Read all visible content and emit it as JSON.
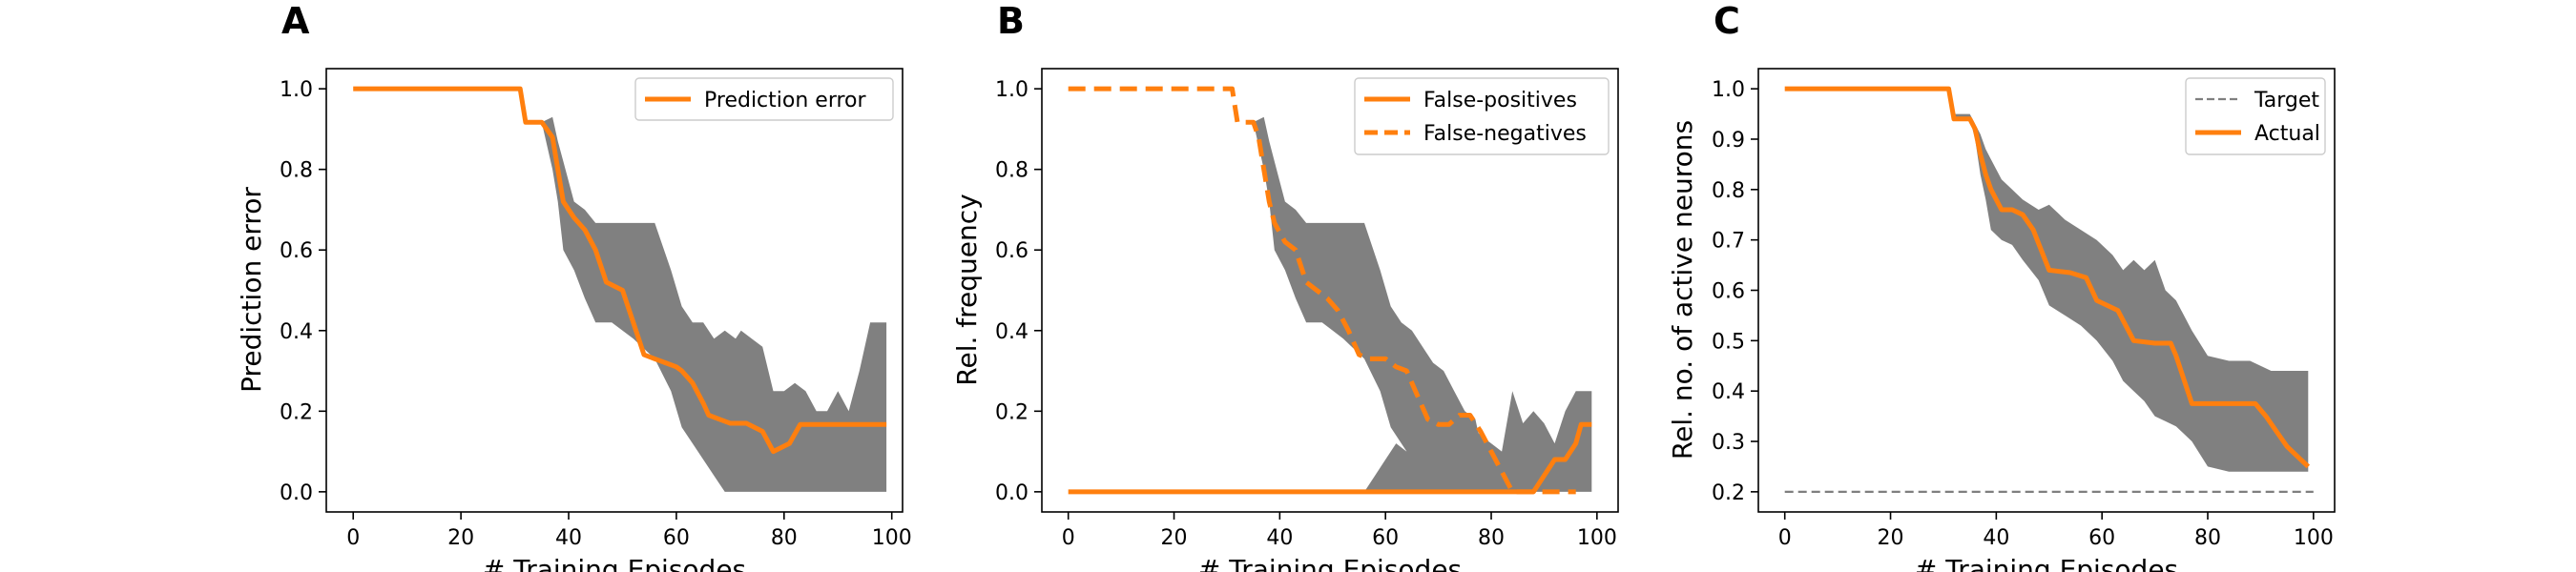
{
  "figure": {
    "colors": {
      "actual": "#ff7f0e",
      "band": "#808080",
      "target": "#7f7f7f",
      "axis": "#000000"
    }
  },
  "chart_data": [
    {
      "type": "line",
      "panel_letter": "A",
      "xlabel": "# Training Episodes",
      "ylabel": "Prediction error",
      "xlim": [
        -5,
        102
      ],
      "ylim": [
        -0.05,
        1.05
      ],
      "x_ticks": [
        "0",
        "20",
        "40",
        "60",
        "80",
        "100"
      ],
      "y_ticks": [
        "0.0",
        "0.2",
        "0.4",
        "0.6",
        "0.8",
        "1.0"
      ],
      "legend_position": "top-right",
      "series": [
        {
          "name": "Prediction error",
          "style": "solid",
          "x": [
            0,
            31,
            32,
            35,
            37,
            38,
            39,
            41,
            43,
            45,
            47,
            50,
            52,
            54,
            56,
            58,
            60,
            61,
            63,
            65,
            66,
            68,
            70,
            73,
            76,
            78,
            81,
            83,
            86,
            90,
            94,
            99
          ],
          "y": [
            1.0,
            1.0,
            0.917,
            0.917,
            0.88,
            0.8,
            0.72,
            0.68,
            0.65,
            0.6,
            0.52,
            0.5,
            0.42,
            0.34,
            0.33,
            0.32,
            0.31,
            0.3,
            0.27,
            0.22,
            0.19,
            0.18,
            0.17,
            0.17,
            0.15,
            0.1,
            0.12,
            0.167,
            0.167,
            0.167,
            0.167,
            0.167
          ],
          "band_x": [
            0,
            31,
            32,
            35,
            37,
            38,
            39,
            41,
            43,
            45,
            48,
            52,
            56,
            59,
            61,
            63,
            65,
            67,
            69,
            71,
            72,
            74,
            76,
            78,
            80,
            82,
            84,
            86,
            88,
            90,
            92,
            94,
            96,
            99
          ],
          "band_upper": [
            1.0,
            1.0,
            0.917,
            0.917,
            0.93,
            0.87,
            0.82,
            0.72,
            0.7,
            0.667,
            0.667,
            0.667,
            0.667,
            0.55,
            0.46,
            0.42,
            0.42,
            0.38,
            0.4,
            0.38,
            0.4,
            0.38,
            0.36,
            0.25,
            0.25,
            0.27,
            0.25,
            0.2,
            0.2,
            0.25,
            0.2,
            0.3,
            0.42,
            0.42
          ],
          "band_lower": [
            1.0,
            1.0,
            0.917,
            0.917,
            0.8,
            0.72,
            0.6,
            0.55,
            0.48,
            0.42,
            0.42,
            0.38,
            0.33,
            0.25,
            0.16,
            0.12,
            0.08,
            0.04,
            0.0,
            0.0,
            0.0,
            0.0,
            0.0,
            0.0,
            0.0,
            0.0,
            0.0,
            0.0,
            0.0,
            0.0,
            0.0,
            0.0,
            0.0,
            0.0
          ]
        }
      ]
    },
    {
      "type": "line",
      "panel_letter": "B",
      "xlabel": "# Training Episodes",
      "ylabel": "Rel. frequency",
      "xlim": [
        -5,
        104
      ],
      "ylim": [
        -0.05,
        1.05
      ],
      "x_ticks": [
        "0",
        "20",
        "40",
        "60",
        "80",
        "100"
      ],
      "y_ticks": [
        "0.0",
        "0.2",
        "0.4",
        "0.6",
        "0.8",
        "1.0"
      ],
      "legend_position": "top-right",
      "series": [
        {
          "name": "False-positives",
          "style": "solid",
          "x": [
            0,
            88,
            90,
            92,
            94,
            96,
            97,
            99
          ],
          "y": [
            0.0,
            0.0,
            0.04,
            0.08,
            0.08,
            0.12,
            0.167,
            0.167
          ],
          "band_x": [
            0,
            56,
            58,
            60,
            62,
            64,
            66,
            68,
            70,
            72,
            74,
            76,
            78,
            80,
            82,
            84,
            86,
            88,
            90,
            92,
            94,
            96,
            99
          ],
          "band_upper": [
            0.0,
            0.0,
            0.04,
            0.08,
            0.12,
            0.1,
            0.18,
            0.16,
            0.19,
            0.2,
            0.12,
            0.17,
            0.14,
            0.12,
            0.1,
            0.25,
            0.17,
            0.2,
            0.17,
            0.12,
            0.2,
            0.25,
            0.25
          ],
          "band_lower": [
            0.0,
            0.0,
            0.0,
            0.0,
            0.0,
            0.0,
            0.0,
            0.0,
            0.0,
            0.0,
            0.0,
            0.0,
            0.0,
            0.0,
            0.0,
            0.0,
            0.0,
            0.0,
            0.0,
            0.0,
            0.0,
            0.0,
            0.0
          ]
        },
        {
          "name": "False-negatives",
          "style": "dashed",
          "x": [
            0,
            31,
            32,
            35,
            36,
            37,
            38,
            39,
            41,
            43,
            45,
            47,
            49,
            51,
            53,
            55,
            57,
            60,
            62,
            64,
            66,
            68,
            70,
            72,
            74,
            76,
            78,
            80,
            82,
            84,
            89,
            91,
            95,
            96
          ],
          "y": [
            1.0,
            1.0,
            0.917,
            0.917,
            0.88,
            0.8,
            0.72,
            0.667,
            0.62,
            0.6,
            0.52,
            0.5,
            0.48,
            0.45,
            0.4,
            0.34,
            0.33,
            0.33,
            0.31,
            0.3,
            0.24,
            0.18,
            0.167,
            0.167,
            0.19,
            0.19,
            0.15,
            0.1,
            0.05,
            0.0,
            0.0,
            0.0,
            0.0,
            0.0
          ],
          "band_x": [
            0,
            31,
            32,
            35,
            37,
            38,
            39,
            41,
            43,
            45,
            48,
            52,
            56,
            59,
            61,
            63,
            65,
            67,
            69,
            71,
            73,
            75,
            77,
            80
          ],
          "band_upper": [
            1.0,
            1.0,
            0.917,
            0.917,
            0.93,
            0.87,
            0.82,
            0.72,
            0.7,
            0.667,
            0.667,
            0.667,
            0.667,
            0.55,
            0.46,
            0.42,
            0.4,
            0.36,
            0.32,
            0.3,
            0.25,
            0.2,
            0.18,
            0.0
          ],
          "band_lower": [
            1.0,
            1.0,
            0.917,
            0.917,
            0.8,
            0.72,
            0.6,
            0.55,
            0.48,
            0.42,
            0.42,
            0.38,
            0.33,
            0.25,
            0.16,
            0.12,
            0.08,
            0.04,
            0.0,
            0.0,
            0.0,
            0.0,
            0.0,
            0.0
          ]
        }
      ]
    },
    {
      "type": "line",
      "panel_letter": "C",
      "xlabel": "# Training Episodes",
      "ylabel": "Rel. no. of active neurons",
      "xlim": [
        -5,
        104
      ],
      "ylim": [
        0.16,
        1.04
      ],
      "x_ticks": [
        "0",
        "20",
        "40",
        "60",
        "80",
        "100"
      ],
      "y_ticks": [
        "0.2",
        "0.3",
        "0.4",
        "0.5",
        "0.6",
        "0.7",
        "0.8",
        "0.9",
        "1.0"
      ],
      "legend_position": "top-right",
      "series": [
        {
          "name": "Target",
          "style": "thin-dashed",
          "x": [
            0,
            100
          ],
          "y": [
            0.2,
            0.2
          ]
        },
        {
          "name": "Actual",
          "style": "solid",
          "x": [
            0,
            31,
            32,
            35,
            36,
            37,
            38,
            39,
            41,
            43,
            45,
            47,
            50,
            54,
            57,
            59,
            61,
            63,
            65,
            66,
            70,
            73,
            74,
            77,
            89,
            91,
            93,
            95,
            97,
            99
          ],
          "y": [
            1.0,
            1.0,
            0.94,
            0.94,
            0.92,
            0.87,
            0.83,
            0.8,
            0.76,
            0.76,
            0.75,
            0.72,
            0.64,
            0.635,
            0.625,
            0.58,
            0.57,
            0.56,
            0.52,
            0.5,
            0.495,
            0.495,
            0.47,
            0.375,
            0.375,
            0.35,
            0.32,
            0.29,
            0.27,
            0.25
          ],
          "band_x": [
            0,
            31,
            32,
            35,
            36,
            37,
            38,
            39,
            41,
            43,
            45,
            48,
            50,
            53,
            56,
            59,
            62,
            64,
            66,
            68,
            70,
            72,
            74,
            77,
            80,
            84,
            88,
            92,
            96,
            99
          ],
          "band_upper": [
            1.0,
            1.0,
            0.95,
            0.95,
            0.93,
            0.91,
            0.88,
            0.86,
            0.82,
            0.8,
            0.78,
            0.76,
            0.77,
            0.74,
            0.72,
            0.7,
            0.67,
            0.64,
            0.66,
            0.64,
            0.66,
            0.6,
            0.58,
            0.52,
            0.47,
            0.46,
            0.46,
            0.44,
            0.44,
            0.44
          ],
          "band_lower": [
            1.0,
            1.0,
            0.94,
            0.94,
            0.9,
            0.83,
            0.78,
            0.72,
            0.7,
            0.69,
            0.66,
            0.62,
            0.57,
            0.55,
            0.53,
            0.5,
            0.46,
            0.42,
            0.4,
            0.38,
            0.35,
            0.34,
            0.33,
            0.3,
            0.25,
            0.24,
            0.24,
            0.24,
            0.24,
            0.24
          ]
        }
      ]
    }
  ]
}
